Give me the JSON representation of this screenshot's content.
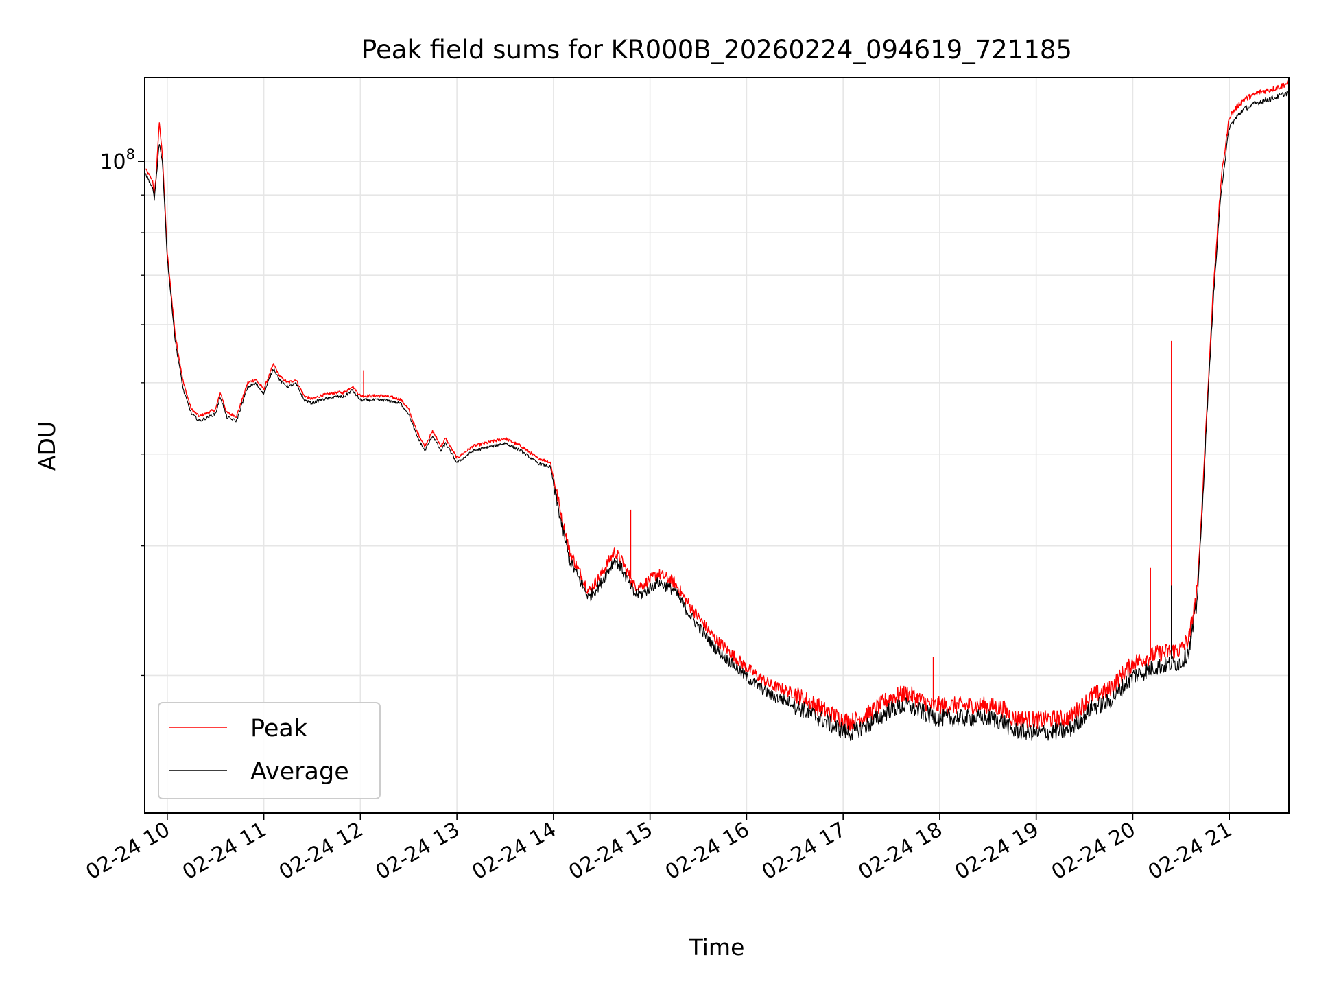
{
  "chart_data": {
    "type": "line",
    "title": "Peak field sums for KR000B_20260224_094619_721185",
    "xlabel": "Time",
    "ylabel": "ADU",
    "yscale": "log",
    "ylim": [
      13000000,
      130000000
    ],
    "xlim": [
      "2026-02-24 09:46",
      "2026-02-24 21:37"
    ],
    "xticks": [
      "02-24 10",
      "02-24 11",
      "02-24 12",
      "02-24 13",
      "02-24 14",
      "02-24 15",
      "02-24 16",
      "02-24 17",
      "02-24 18",
      "02-24 19",
      "02-24 20",
      "02-24 21"
    ],
    "yticks_labeled": [
      "10^8"
    ],
    "grid": true,
    "legend_position": "lower left",
    "series": [
      {
        "name": "Peak",
        "color": "#ff0000",
        "points": [
          [
            "2026-02-24 09:46",
            98000000
          ],
          [
            "2026-02-24 09:51",
            94000000
          ],
          [
            "2026-02-24 09:52",
            90000000
          ],
          [
            "2026-02-24 09:53",
            95000000
          ],
          [
            "2026-02-24 09:55",
            113000000
          ],
          [
            "2026-02-24 09:57",
            102000000
          ],
          [
            "2026-02-24 10:00",
            75000000
          ],
          [
            "2026-02-24 10:05",
            58000000
          ],
          [
            "2026-02-24 10:10",
            50000000
          ],
          [
            "2026-02-24 10:15",
            46000000
          ],
          [
            "2026-02-24 10:20",
            45000000
          ],
          [
            "2026-02-24 10:30",
            46000000
          ],
          [
            "2026-02-24 10:33",
            48500000
          ],
          [
            "2026-02-24 10:37",
            45500000
          ],
          [
            "2026-02-24 10:43",
            45000000
          ],
          [
            "2026-02-24 10:50",
            50000000
          ],
          [
            "2026-02-24 10:55",
            50500000
          ],
          [
            "2026-02-24 11:00",
            49000000
          ],
          [
            "2026-02-24 11:06",
            53000000
          ],
          [
            "2026-02-24 11:10",
            51000000
          ],
          [
            "2026-02-24 11:15",
            50000000
          ],
          [
            "2026-02-24 11:20",
            50500000
          ],
          [
            "2026-02-24 11:25",
            48000000
          ],
          [
            "2026-02-24 11:30",
            47500000
          ],
          [
            "2026-02-24 11:35",
            48000000
          ],
          [
            "2026-02-24 11:45",
            48500000
          ],
          [
            "2026-02-24 11:50",
            48500000
          ],
          [
            "2026-02-24 11:55",
            49500000
          ],
          [
            "2026-02-24 12:00",
            48000000
          ],
          [
            "2026-02-24 12:15",
            48000000
          ],
          [
            "2026-02-24 12:25",
            47500000
          ],
          [
            "2026-02-24 12:30",
            46000000
          ],
          [
            "2026-02-24 12:35",
            43000000
          ],
          [
            "2026-02-24 12:40",
            41000000
          ],
          [
            "2026-02-24 12:45",
            43000000
          ],
          [
            "2026-02-24 12:50",
            41000000
          ],
          [
            "2026-02-24 12:53",
            42000000
          ],
          [
            "2026-02-24 13:00",
            39500000
          ],
          [
            "2026-02-24 13:10",
            41000000
          ],
          [
            "2026-02-24 13:30",
            42000000
          ],
          [
            "2026-02-24 13:40",
            41000000
          ],
          [
            "2026-02-24 13:50",
            39500000
          ],
          [
            "2026-02-24 13:58",
            39000000
          ],
          [
            "2026-02-24 14:05",
            33000000
          ],
          [
            "2026-02-24 14:10",
            29500000
          ],
          [
            "2026-02-24 14:15",
            28000000
          ],
          [
            "2026-02-24 14:22",
            26000000
          ],
          [
            "2026-02-24 14:30",
            27500000
          ],
          [
            "2026-02-24 14:38",
            29500000
          ],
          [
            "2026-02-24 14:43",
            28500000
          ],
          [
            "2026-02-24 14:50",
            26500000
          ],
          [
            "2026-02-24 14:55",
            26500000
          ],
          [
            "2026-02-24 15:05",
            27500000
          ],
          [
            "2026-02-24 15:15",
            26800000
          ],
          [
            "2026-02-24 15:25",
            24800000
          ],
          [
            "2026-02-24 15:40",
            22500000
          ],
          [
            "2026-02-24 16:00",
            20500000
          ],
          [
            "2026-02-24 16:15",
            19400000
          ],
          [
            "2026-02-24 16:30",
            18900000
          ],
          [
            "2026-02-24 16:45",
            18100000
          ],
          [
            "2026-02-24 17:00",
            17400000
          ],
          [
            "2026-02-24 17:05",
            17300000
          ],
          [
            "2026-02-24 17:15",
            17700000
          ],
          [
            "2026-02-24 17:30",
            18700000
          ],
          [
            "2026-02-24 17:40",
            18900000
          ],
          [
            "2026-02-24 17:55",
            18200000
          ],
          [
            "2026-02-24 18:00",
            18200000
          ],
          [
            "2026-02-24 18:30",
            18200000
          ],
          [
            "2026-02-24 18:40",
            18000000
          ],
          [
            "2026-02-24 18:45",
            17500000
          ],
          [
            "2026-02-24 19:00",
            17400000
          ],
          [
            "2026-02-24 19:20",
            17500000
          ],
          [
            "2026-02-24 19:25",
            17900000
          ],
          [
            "2026-02-24 19:35",
            18800000
          ],
          [
            "2026-02-24 19:45",
            19100000
          ],
          [
            "2026-02-24 20:00",
            20800000
          ],
          [
            "2026-02-24 20:15",
            21400000
          ],
          [
            "2026-02-24 20:30",
            21700000
          ],
          [
            "2026-02-24 20:35",
            22500000
          ],
          [
            "2026-02-24 20:40",
            26000000
          ],
          [
            "2026-02-24 20:43",
            34000000
          ],
          [
            "2026-02-24 20:46",
            46000000
          ],
          [
            "2026-02-24 20:50",
            67000000
          ],
          [
            "2026-02-24 20:55",
            95000000
          ],
          [
            "2026-02-24 21:00",
            115000000
          ],
          [
            "2026-02-24 21:08",
            121000000
          ],
          [
            "2026-02-24 21:18",
            124000000
          ],
          [
            "2026-02-24 21:30",
            126000000
          ],
          [
            "2026-02-24 21:37",
            128000000
          ]
        ],
        "spikes": [
          [
            "2026-02-24 12:02",
            52000000
          ],
          [
            "2026-02-24 14:48",
            33600000
          ],
          [
            "2026-02-24 17:56",
            21200000
          ],
          [
            "2026-02-24 20:11",
            28000000
          ],
          [
            "2026-02-24 20:24",
            57000000
          ]
        ]
      },
      {
        "name": "Average",
        "color": "#000000",
        "points": [
          [
            "2026-02-24 09:46",
            97000000
          ],
          [
            "2026-02-24 09:51",
            92000000
          ],
          [
            "2026-02-24 09:52",
            89000000
          ],
          [
            "2026-02-24 09:53",
            94000000
          ],
          [
            "2026-02-24 09:55",
            106000000
          ],
          [
            "2026-02-24 09:57",
            100000000
          ],
          [
            "2026-02-24 10:00",
            74000000
          ],
          [
            "2026-02-24 10:05",
            57000000
          ],
          [
            "2026-02-24 10:10",
            49000000
          ],
          [
            "2026-02-24 10:15",
            45500000
          ],
          [
            "2026-02-24 10:20",
            44500000
          ],
          [
            "2026-02-24 10:30",
            45500000
          ],
          [
            "2026-02-24 10:33",
            48000000
          ],
          [
            "2026-02-24 10:37",
            45000000
          ],
          [
            "2026-02-24 10:43",
            44500000
          ],
          [
            "2026-02-24 10:50",
            49500000
          ],
          [
            "2026-02-24 10:55",
            50000000
          ],
          [
            "2026-02-24 11:00",
            48500000
          ],
          [
            "2026-02-24 11:06",
            52500000
          ],
          [
            "2026-02-24 11:10",
            50500000
          ],
          [
            "2026-02-24 11:15",
            49500000
          ],
          [
            "2026-02-24 11:20",
            50000000
          ],
          [
            "2026-02-24 11:25",
            47500000
          ],
          [
            "2026-02-24 11:30",
            47000000
          ],
          [
            "2026-02-24 11:35",
            47500000
          ],
          [
            "2026-02-24 11:45",
            48000000
          ],
          [
            "2026-02-24 11:50",
            48000000
          ],
          [
            "2026-02-24 11:55",
            49000000
          ],
          [
            "2026-02-24 12:00",
            47500000
          ],
          [
            "2026-02-24 12:15",
            47500000
          ],
          [
            "2026-02-24 12:25",
            47000000
          ],
          [
            "2026-02-24 12:30",
            45500000
          ],
          [
            "2026-02-24 12:35",
            42500000
          ],
          [
            "2026-02-24 12:40",
            40500000
          ],
          [
            "2026-02-24 12:45",
            42500000
          ],
          [
            "2026-02-24 12:50",
            40500000
          ],
          [
            "2026-02-24 12:53",
            41500000
          ],
          [
            "2026-02-24 13:00",
            39000000
          ],
          [
            "2026-02-24 13:10",
            40500000
          ],
          [
            "2026-02-24 13:30",
            41500000
          ],
          [
            "2026-02-24 13:40",
            40500000
          ],
          [
            "2026-02-24 13:50",
            39000000
          ],
          [
            "2026-02-24 13:58",
            38500000
          ],
          [
            "2026-02-24 14:05",
            32500000
          ],
          [
            "2026-02-24 14:10",
            29000000
          ],
          [
            "2026-02-24 14:15",
            27600000
          ],
          [
            "2026-02-24 14:22",
            25800000
          ],
          [
            "2026-02-24 14:30",
            27100000
          ],
          [
            "2026-02-24 14:38",
            29100000
          ],
          [
            "2026-02-24 14:43",
            28100000
          ],
          [
            "2026-02-24 14:50",
            26100000
          ],
          [
            "2026-02-24 14:55",
            26100000
          ],
          [
            "2026-02-24 15:05",
            27100000
          ],
          [
            "2026-02-24 15:15",
            26400000
          ],
          [
            "2026-02-24 15:25",
            24400000
          ],
          [
            "2026-02-24 15:40",
            22100000
          ],
          [
            "2026-02-24 16:00",
            20100000
          ],
          [
            "2026-02-24 16:15",
            19000000
          ],
          [
            "2026-02-24 16:30",
            18500000
          ],
          [
            "2026-02-24 16:45",
            17800000
          ],
          [
            "2026-02-24 17:00",
            17100000
          ],
          [
            "2026-02-24 17:05",
            17000000
          ],
          [
            "2026-02-24 17:15",
            17400000
          ],
          [
            "2026-02-24 17:30",
            18300000
          ],
          [
            "2026-02-24 17:40",
            18500000
          ],
          [
            "2026-02-24 17:55",
            17900000
          ],
          [
            "2026-02-24 18:00",
            17800000
          ],
          [
            "2026-02-24 18:30",
            17800000
          ],
          [
            "2026-02-24 18:40",
            17600000
          ],
          [
            "2026-02-24 18:45",
            17100000
          ],
          [
            "2026-02-24 19:00",
            17000000
          ],
          [
            "2026-02-24 19:20",
            17100000
          ],
          [
            "2026-02-24 19:25",
            17500000
          ],
          [
            "2026-02-24 19:35",
            18400000
          ],
          [
            "2026-02-24 19:45",
            18700000
          ],
          [
            "2026-02-24 20:00",
            20300000
          ],
          [
            "2026-02-24 20:15",
            20900000
          ],
          [
            "2026-02-24 20:30",
            21200000
          ],
          [
            "2026-02-24 20:35",
            22000000
          ],
          [
            "2026-02-24 20:40",
            25500000
          ],
          [
            "2026-02-24 20:43",
            33000000
          ],
          [
            "2026-02-24 20:46",
            45000000
          ],
          [
            "2026-02-24 20:50",
            65000000
          ],
          [
            "2026-02-24 20:55",
            92000000
          ],
          [
            "2026-02-24 21:00",
            112000000
          ],
          [
            "2026-02-24 21:08",
            118000000
          ],
          [
            "2026-02-24 21:18",
            121000000
          ],
          [
            "2026-02-24 21:30",
            123000000
          ],
          [
            "2026-02-24 21:37",
            125000000
          ]
        ],
        "spikes": [
          [
            "2026-02-24 20:24",
            26500000
          ]
        ]
      }
    ]
  }
}
